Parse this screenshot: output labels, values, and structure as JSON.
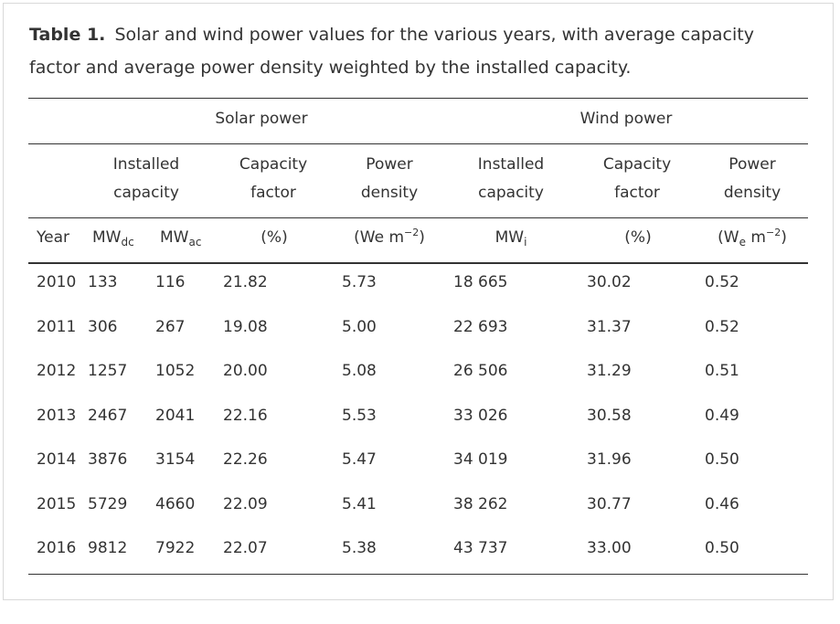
{
  "caption": {
    "label": "Table 1.",
    "text": "Solar and wind power values for the various years, with average capacity factor and average power density weighted by the installed capacity."
  },
  "groups": {
    "solar": "Solar power",
    "wind": "Wind power"
  },
  "subheaders": {
    "solar_installed": [
      "Installed",
      "capacity"
    ],
    "solar_capacity_factor": [
      "Capacity",
      "factor"
    ],
    "solar_power_density": [
      "Power",
      "density"
    ],
    "wind_installed": [
      "Installed",
      "capacity"
    ],
    "wind_capacity_factor": [
      "Capacity",
      "factor"
    ],
    "wind_power_density": [
      "Power",
      "density"
    ]
  },
  "units": {
    "year": "Year",
    "mw_dc": {
      "base": "MW",
      "sub": "dc"
    },
    "mw_ac": {
      "base": "MW",
      "sub": "ac"
    },
    "solar_cf": "(%)",
    "solar_pd": {
      "pre": "(We m",
      "sup": "−2",
      "post": ")"
    },
    "wind_mw": {
      "base": "MW",
      "sub": "i"
    },
    "wind_cf": "(%)",
    "wind_pd": {
      "pre": "(W",
      "sub": "e",
      "mid": " m",
      "sup": "−2",
      "post": ")"
    }
  },
  "rows": [
    [
      "2010",
      "133",
      "116",
      "21.82",
      "5.73",
      "18 665",
      "30.02",
      "0.52"
    ],
    [
      "2011",
      "306",
      "267",
      "19.08",
      "5.00",
      "22 693",
      "31.37",
      "0.52"
    ],
    [
      "2012",
      "1257",
      "1052",
      "20.00",
      "5.08",
      "26 506",
      "31.29",
      "0.51"
    ],
    [
      "2013",
      "2467",
      "2041",
      "22.16",
      "5.53",
      "33 026",
      "30.58",
      "0.49"
    ],
    [
      "2014",
      "3876",
      "3154",
      "22.26",
      "5.47",
      "34 019",
      "31.96",
      "0.50"
    ],
    [
      "2015",
      "5729",
      "4660",
      "22.09",
      "5.41",
      "38 262",
      "30.77",
      "0.46"
    ],
    [
      "2016",
      "9812",
      "7922",
      "22.07",
      "5.38",
      "43 737",
      "33.00",
      "0.50"
    ]
  ]
}
